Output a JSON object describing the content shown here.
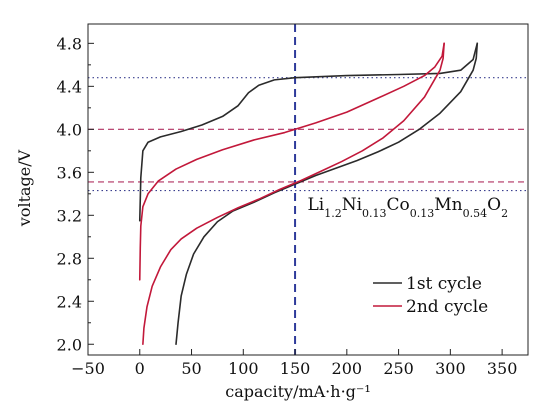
{
  "chart_data": {
    "type": "line",
    "xlabel": "capacity/mA·h·g⁻¹",
    "ylabel": "voltage/V",
    "xlim": [
      -50,
      375
    ],
    "ylim": [
      1.9,
      4.98
    ],
    "xticks": [
      -50,
      0,
      50,
      100,
      150,
      200,
      250,
      300,
      350
    ],
    "yticks": [
      2.0,
      2.4,
      2.8,
      3.2,
      3.6,
      4.0,
      4.4,
      4.8
    ],
    "xtick_labels": [
      "−50",
      "0",
      "50",
      "100",
      "150",
      "200",
      "250",
      "300",
      "350"
    ],
    "ytick_labels": [
      "2.0",
      "2.4",
      "2.8",
      "3.2",
      "3.6",
      "4.0",
      "4.4",
      "4.8"
    ],
    "grid": false,
    "legend_position": "bottom-right",
    "series": [
      {
        "name": "1st cycle",
        "color": "#2b2b2b",
        "charge": {
          "x": [
            0,
            1,
            3,
            8,
            20,
            40,
            60,
            80,
            95,
            105,
            115,
            130,
            150,
            200,
            250,
            290,
            310,
            322,
            326
          ],
          "y": [
            3.15,
            3.55,
            3.8,
            3.88,
            3.93,
            3.98,
            4.04,
            4.12,
            4.22,
            4.34,
            4.41,
            4.46,
            4.48,
            4.5,
            4.51,
            4.52,
            4.55,
            4.65,
            4.8
          ]
        },
        "discharge": {
          "x": [
            326,
            325,
            322,
            310,
            290,
            270,
            250,
            230,
            210,
            190,
            170,
            150,
            130,
            110,
            90,
            75,
            62,
            52,
            45,
            40,
            37,
            35
          ],
          "y": [
            4.8,
            4.66,
            4.55,
            4.35,
            4.15,
            4.0,
            3.88,
            3.79,
            3.71,
            3.64,
            3.57,
            3.49,
            3.41,
            3.32,
            3.24,
            3.14,
            3.0,
            2.84,
            2.65,
            2.45,
            2.2,
            2.0
          ]
        }
      },
      {
        "name": "2nd cycle",
        "color": "#c2183a",
        "charge": {
          "x": [
            0,
            0.5,
            1,
            3,
            8,
            18,
            35,
            55,
            80,
            110,
            140,
            170,
            200,
            230,
            255,
            275,
            285,
            292,
            294
          ],
          "y": [
            2.6,
            2.9,
            3.1,
            3.28,
            3.4,
            3.52,
            3.63,
            3.72,
            3.81,
            3.9,
            3.97,
            4.06,
            4.16,
            4.29,
            4.4,
            4.5,
            4.58,
            4.68,
            4.8
          ]
        },
        "discharge": {
          "x": [
            294,
            293,
            290,
            275,
            255,
            235,
            215,
            195,
            175,
            155,
            135,
            115,
            95,
            75,
            55,
            40,
            30,
            20,
            12,
            7,
            4,
            3
          ],
          "y": [
            4.8,
            4.66,
            4.55,
            4.3,
            4.08,
            3.92,
            3.8,
            3.7,
            3.61,
            3.52,
            3.44,
            3.35,
            3.27,
            3.18,
            3.08,
            2.98,
            2.88,
            2.72,
            2.54,
            2.35,
            2.15,
            2.0
          ]
        }
      }
    ],
    "reference_lines": {
      "vertical": [
        {
          "x": 150,
          "color": "#2e3a9a",
          "style": "dashed",
          "width": 2
        }
      ],
      "horizontal": [
        {
          "y": 4.48,
          "color": "#3a3f8f",
          "style": "dotted"
        },
        {
          "y": 4.0,
          "color": "#b03060",
          "style": "dashed"
        },
        {
          "y": 3.51,
          "color": "#b03060",
          "style": "dashed"
        },
        {
          "y": 3.43,
          "color": "#3a3f8f",
          "style": "dotted"
        }
      ]
    },
    "annotation": {
      "x": 162,
      "y": 3.25,
      "parts": [
        {
          "text": "Li",
          "sub": false
        },
        {
          "text": "1.2",
          "sub": true
        },
        {
          "text": "Ni",
          "sub": false
        },
        {
          "text": "0.13",
          "sub": true
        },
        {
          "text": "Co",
          "sub": false
        },
        {
          "text": "0.13",
          "sub": true
        },
        {
          "text": "Mn",
          "sub": false
        },
        {
          "text": "0.54",
          "sub": true
        },
        {
          "text": "O",
          "sub": false
        },
        {
          "text": "2",
          "sub": true
        }
      ]
    }
  }
}
